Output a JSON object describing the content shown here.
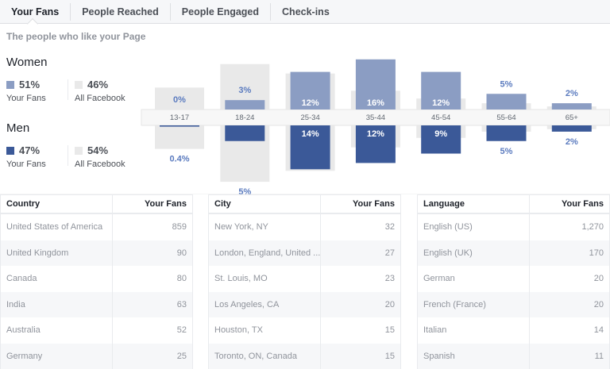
{
  "tabs": [
    "Your Fans",
    "People Reached",
    "People Engaged",
    "Check-ins"
  ],
  "subtitle": "The people who like your Page",
  "women": {
    "title": "Women",
    "fans_pct": "51%",
    "fans_label": "Your Fans",
    "fb_pct": "46%",
    "fb_label": "All Facebook"
  },
  "men": {
    "title": "Men",
    "fans_pct": "47%",
    "fans_label": "Your Fans",
    "fb_pct": "54%",
    "fb_label": "All Facebook"
  },
  "colors": {
    "women": "#8b9dc3",
    "men": "#3b5998",
    "all_facebook": "#e9e9e9",
    "label": "#5b7bbf"
  },
  "chart_data": {
    "type": "bar",
    "categories": [
      "13-17",
      "18-24",
      "25-34",
      "35-44",
      "45-54",
      "55-64",
      "65+"
    ],
    "series": [
      {
        "name": "Women – Your Fans",
        "values": [
          0,
          3,
          12,
          16,
          12,
          5,
          2
        ],
        "labels": [
          "0%",
          "3%",
          "12%",
          "16%",
          "12%",
          "5%",
          "2%"
        ]
      },
      {
        "name": "Men – Your Fans",
        "values": [
          0.4,
          5,
          14,
          12,
          9,
          5,
          2
        ],
        "labels": [
          "0.4%",
          "5%",
          "14%",
          "12%",
          "9%",
          "5%",
          "2%"
        ]
      },
      {
        "name": "Women – All Facebook",
        "values": [
          7,
          14.5,
          11.5,
          6,
          3.5,
          2,
          1
        ]
      },
      {
        "name": "Men – All Facebook",
        "values": [
          7.5,
          18,
          14.5,
          7,
          4,
          2,
          1.2
        ]
      }
    ]
  },
  "tables": [
    {
      "headers": [
        "Country",
        "Your Fans"
      ],
      "rows": [
        [
          "United States of America",
          "859"
        ],
        [
          "United Kingdom",
          "90"
        ],
        [
          "Canada",
          "80"
        ],
        [
          "India",
          "63"
        ],
        [
          "Australia",
          "52"
        ],
        [
          "Germany",
          "25"
        ]
      ]
    },
    {
      "headers": [
        "City",
        "Your Fans"
      ],
      "rows": [
        [
          "New York, NY",
          "32"
        ],
        [
          "London, England, United ...",
          "27"
        ],
        [
          "St. Louis, MO",
          "23"
        ],
        [
          "Los Angeles, CA",
          "20"
        ],
        [
          "Houston, TX",
          "15"
        ],
        [
          "Toronto, ON, Canada",
          "15"
        ]
      ]
    },
    {
      "headers": [
        "Language",
        "Your Fans"
      ],
      "rows": [
        [
          "English (US)",
          "1,270"
        ],
        [
          "English (UK)",
          "170"
        ],
        [
          "German",
          "20"
        ],
        [
          "French (France)",
          "20"
        ],
        [
          "Italian",
          "14"
        ],
        [
          "Spanish",
          "11"
        ]
      ]
    }
  ]
}
